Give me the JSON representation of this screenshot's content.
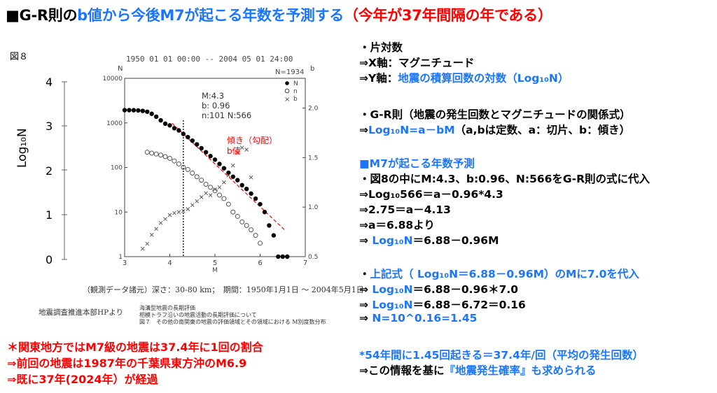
{
  "title": {
    "part1": "■G-R則の",
    "part2": "b値から今後M7が起こる年数を予測する",
    "part3": "（今年が37年間隔の年である）"
  },
  "figure": {
    "label": "図８",
    "y_axis_label": "Log₁₀N",
    "y_ticks": [
      "4",
      "3",
      "2",
      "1",
      "0"
    ],
    "header": "1950 01 01 00:00 -- 2004 05 01 24:00",
    "n_label": "N",
    "b_label": "b",
    "n_total": "N=1934",
    "legend": [
      "N",
      "n",
      "b"
    ],
    "annotation": [
      "M:4.3",
      "b: 0.96",
      "n:101 N:566"
    ],
    "slope_note": [
      "傾き（勾配）",
      "b値"
    ],
    "footer": "（観測データ諸元）深さ：30-80 km；　期間：1950年1月1日 ～ 2004年5月1日",
    "source_left": "地震調査推進本部HPより",
    "source_right": [
      "海溝型地震の長期評価",
      "相模トラフ沿いの地震活動の長期評価について",
      "図７　その他の南関東の地震の評価領域とその領域における M別度数分布"
    ]
  },
  "chart_data": {
    "type": "scatter",
    "title": "1950 01 01 00:00 -- 2004 05 01 24:00",
    "xlabel": "M",
    "ylabel": "N",
    "y2label": "b",
    "xlim": [
      3,
      7
    ],
    "ylim_log": [
      1,
      10000
    ],
    "y2lim": [
      0.5,
      2.3
    ],
    "x_ticks": [
      "3",
      "4",
      "5",
      "6",
      "7"
    ],
    "y_ticks": [
      "1",
      "10",
      "100",
      "1000",
      "10000"
    ],
    "y2_ticks": [
      "0.5",
      "1.0",
      "1.5",
      "2.0"
    ],
    "marker_line_M": 4.3,
    "series": [
      {
        "name": "N",
        "marker": "filled-circle",
        "x": [
          3.0,
          3.1,
          3.2,
          3.3,
          3.4,
          3.5,
          3.6,
          3.7,
          3.8,
          3.9,
          4.0,
          4.1,
          4.2,
          4.3,
          4.4,
          4.5,
          4.6,
          4.7,
          4.8,
          4.9,
          5.0,
          5.1,
          5.2,
          5.3,
          5.4,
          5.5,
          5.6,
          5.7,
          5.8,
          5.9,
          6.0,
          6.1,
          6.2,
          6.3,
          6.4,
          6.5,
          6.6
        ],
        "y": [
          1934,
          1930,
          1925,
          1900,
          1860,
          1780,
          1600,
          1380,
          1140,
          960,
          880,
          760,
          680,
          566,
          480,
          400,
          330,
          270,
          220,
          180,
          150,
          120,
          96,
          76,
          62,
          52,
          40,
          33,
          26,
          20,
          15,
          10,
          5,
          3,
          1,
          1,
          1
        ]
      },
      {
        "name": "n",
        "marker": "open-circle",
        "x": [
          3.5,
          3.6,
          3.7,
          3.8,
          3.9,
          4.0,
          4.1,
          4.2,
          4.3,
          4.4,
          4.5,
          4.6,
          4.7,
          4.8,
          4.9,
          5.0,
          5.1,
          5.2,
          5.3,
          5.4,
          5.5,
          5.6,
          5.7,
          5.8,
          5.9,
          6.0
        ],
        "y": [
          220,
          210,
          200,
          190,
          175,
          160,
          140,
          120,
          101,
          90,
          75,
          62,
          52,
          42,
          36,
          30,
          24,
          20,
          15,
          10,
          8,
          6,
          5,
          4,
          3,
          2
        ]
      },
      {
        "name": "b",
        "marker": "x",
        "x": [
          3.4,
          3.5,
          3.6,
          3.7,
          3.8,
          3.9,
          4.0,
          4.1,
          4.2,
          4.3,
          4.4,
          4.5,
          4.6,
          4.7,
          4.8,
          4.9,
          5.0,
          5.1,
          5.2,
          5.3,
          5.4,
          5.5,
          5.6,
          5.7,
          5.8
        ],
        "y": [
          0.58,
          0.63,
          0.72,
          0.78,
          0.84,
          0.88,
          0.92,
          0.94,
          0.95,
          0.96,
          0.98,
          1.02,
          1.06,
          1.1,
          1.14,
          1.12,
          1.18,
          1.2,
          1.25,
          1.32,
          1.42,
          1.55,
          1.6,
          1.58,
          1.3
        ]
      }
    ]
  },
  "right": {
    "lines": [
      "・片対数",
      "⇒X軸：マグニチュード",
      "⇒Y軸：",
      "地震の積算回数の対数（Log₁₀N）",
      "・G-R則（地震の発生回数とマグニチュードの関係式）",
      "⇒",
      "Log₁₀N=a－bM",
      "（a,bは定数、a：切片、b：傾き）",
      "■M7が起こる年数予測",
      "・図8の中にM:4.3、b:0.96、N:566をG-R則の式に代入",
      "⇒Log₁₀566＝a－0.96*4.3",
      "⇒2.75＝a－4.13",
      "⇒a＝6.88より",
      "⇒",
      "Log₁₀N",
      "＝6.88－0.96M",
      "・",
      "上記式（ Log₁₀N＝6.88－0.96M）",
      "のMに7.0を代入",
      "⇒",
      "Log₁₀N",
      "＝6.88－0.96＊7.0",
      "⇒",
      "Log₁₀N",
      "＝6.88－6.72＝0.16",
      "⇒",
      "N=10^0.16=1.45",
      "*54年間に1.45回起きる＝37.4年/回（平均の発生回数）",
      "⇒この情報を基に",
      "『地震発生確率』",
      "も求められる"
    ]
  },
  "bottom_left": [
    "＊関東地方ではM7級の地震は37.4年に1回の割合",
    "⇒前回の地震は1987年の千葉県東方沖のM6.9",
    "⇒既に37年(2024年）が経過"
  ]
}
